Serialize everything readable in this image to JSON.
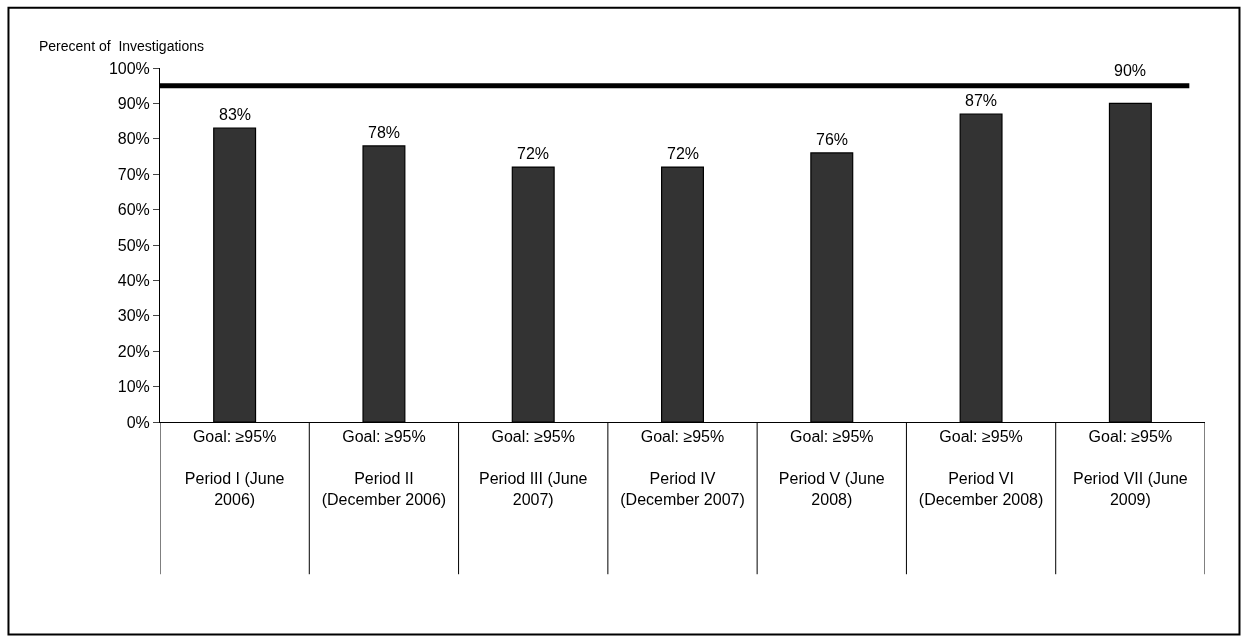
{
  "chart_data": {
    "type": "bar",
    "ylabel": "Perecent of  Investigations",
    "categories": [
      "Goal: ≥95%\n\nPeriod I (June 2006)",
      "Goal: ≥95%\n\nPeriod II (December 2006)",
      "Goal: ≥95%\n\nPeriod III (June 2007)",
      "Goal: ≥95%\n\nPeriod IV (December 2007)",
      "Goal: ≥95%\n\nPeriod V (June 2008)",
      "Goal: ≥95%\n\nPeriod VI (December 2008)",
      "Goal: ≥95%\n\nPeriod VII (June 2009)"
    ],
    "values": [
      83,
      78,
      72,
      72,
      76,
      87,
      90
    ],
    "color": "#333333",
    "data_labels": true,
    "value_labels": [
      "83%",
      "78%",
      "72%",
      "72%",
      "76%",
      "87%",
      "90%"
    ],
    "ylim": [
      0,
      100
    ],
    "yticks": [
      {
        "value": 0,
        "label": "0%"
      },
      {
        "value": 10,
        "label": "10%"
      },
      {
        "value": 20,
        "label": "20%"
      },
      {
        "value": 30,
        "label": "30%"
      },
      {
        "value": 40,
        "label": "40%"
      },
      {
        "value": 50,
        "label": "50%"
      },
      {
        "value": 60,
        "label": "60%"
      },
      {
        "value": 70,
        "label": "70%"
      },
      {
        "value": 80,
        "label": "80%"
      },
      {
        "value": 90,
        "label": "90%"
      },
      {
        "value": 100,
        "label": "100%"
      }
    ],
    "ref_lines": [
      {
        "axis": "y",
        "value": 95,
        "color": "#000000",
        "line_style": "solid"
      }
    ]
  }
}
